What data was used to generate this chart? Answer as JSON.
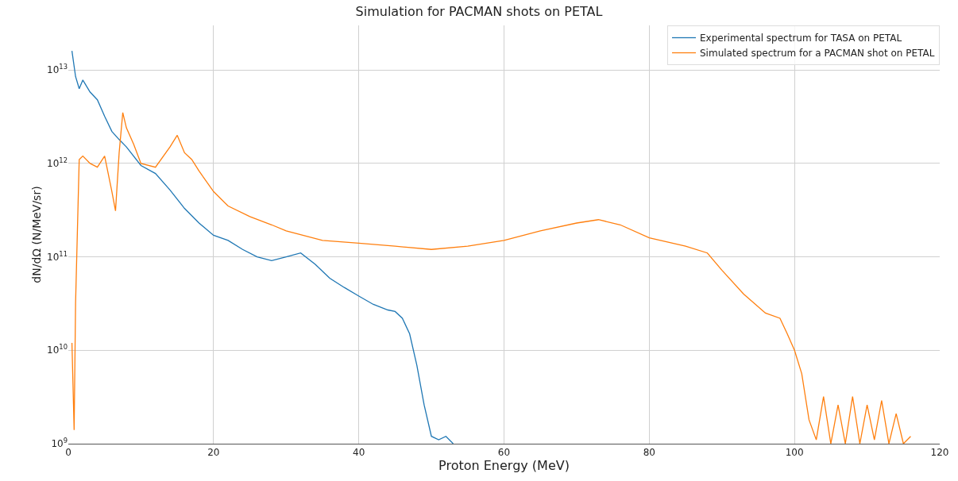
{
  "chart_data": {
    "type": "line",
    "title": "Simulation for PACMAN shots on PETAL",
    "xlabel": "Proton Energy (MeV)",
    "ylabel": "dN/dΩ (N/MeV/sr)",
    "log": "y",
    "grid": true,
    "legend": "top right",
    "line_style": "solid",
    "xlim": [
      0,
      120
    ],
    "xticks": [
      0,
      20,
      40,
      60,
      80,
      100,
      120
    ],
    "ylim": [
      1000000000.0,
      30000000000000.0
    ],
    "yticks": [
      {
        "value": 1000000000.0,
        "label": "10$^{9}$"
      },
      {
        "value": 10000000000.0,
        "label": "10$^{10}$"
      },
      {
        "value": 100000000000.0,
        "label": "10$^{11}$"
      },
      {
        "value": 1000000000000.0,
        "label": "10$^{12}$"
      },
      {
        "value": 10000000000000.0,
        "label": "10$^{13}$"
      }
    ],
    "series": [
      {
        "name": "Experimental spectrum for TASA on PETAL",
        "color": "#1f77b4",
        "x": [
          0.5,
          1,
          1.5,
          2,
          3,
          4,
          5,
          6,
          7,
          8,
          10,
          12,
          14,
          16,
          18,
          20,
          22,
          24,
          26,
          28,
          30,
          32,
          34,
          36,
          38,
          40,
          42,
          44,
          45,
          46,
          47,
          48,
          49,
          50,
          51,
          52,
          53
        ],
        "values": [
          16000000000000.0,
          8500000000000.0,
          6300000000000.0,
          7800000000000.0,
          5800000000000.0,
          4800000000000.0,
          3200000000000.0,
          2200000000000.0,
          1800000000000.0,
          1500000000000.0,
          950000000000.0,
          780000000000.0,
          520000000000.0,
          330000000000.0,
          230000000000.0,
          170000000000.0,
          150000000000.0,
          120000000000.0,
          100000000000.0,
          91000000000.0,
          100000000000.0,
          110000000000.0,
          83000000000.0,
          59000000000.0,
          47000000000.0,
          38000000000.0,
          31000000000.0,
          27000000000.0,
          26000000000.0,
          22000000000.0,
          15000000000.0,
          6900000000.0,
          2600000000.0,
          1200000000.0,
          1100000000.0,
          1200000000.0,
          1000000000.0
        ]
      },
      {
        "name": "Simulated spectrum for a PACMAN shot on PETAL",
        "color": "#ff7f0e",
        "x": [
          0.5,
          0.8,
          1,
          1.5,
          2,
          3,
          4,
          5,
          6,
          6.5,
          7,
          7.5,
          8,
          9,
          10,
          12,
          14,
          15,
          16,
          17,
          18,
          20,
          22,
          25,
          28,
          30,
          35,
          40,
          45,
          50,
          55,
          60,
          65,
          70,
          73,
          76,
          80,
          85,
          88,
          90,
          93,
          96,
          98,
          99,
          100,
          101,
          102,
          103,
          104,
          105,
          106,
          107,
          108,
          109,
          110,
          111,
          112,
          113,
          114,
          115,
          116
        ],
        "values": [
          12000000000.0,
          1400000000.0,
          32000000000.0,
          1100000000000.0,
          1200000000000.0,
          1000000000000.0,
          910000000000.0,
          1200000000000.0,
          500000000000.0,
          310000000000.0,
          1300000000000.0,
          3500000000000.0,
          2400000000000.0,
          1600000000000.0,
          1000000000000.0,
          910000000000.0,
          1500000000000.0,
          2000000000000.0,
          1300000000000.0,
          1100000000000.0,
          830000000000.0,
          500000000000.0,
          350000000000.0,
          270000000000.0,
          220000000000.0,
          190000000000.0,
          150000000000.0,
          140000000000.0,
          130000000000.0,
          120000000000.0,
          130000000000.0,
          150000000000.0,
          190000000000.0,
          230000000000.0,
          250000000000.0,
          220000000000.0,
          160000000000.0,
          130000000000.0,
          110000000000.0,
          72000000000.0,
          40000000000.0,
          25000000000.0,
          22000000000.0,
          15000000000.0,
          10000000000.0,
          5600000000.0,
          1800000000.0,
          1100000000.0,
          3200000000.0,
          1000000000.0,
          2600000000.0,
          1000000000.0,
          3200000000.0,
          1000000000.0,
          2600000000.0,
          1100000000.0,
          2900000000.0,
          1000000000.0,
          2100000000.0,
          1000000000.0,
          1200000000.0
        ]
      }
    ]
  }
}
